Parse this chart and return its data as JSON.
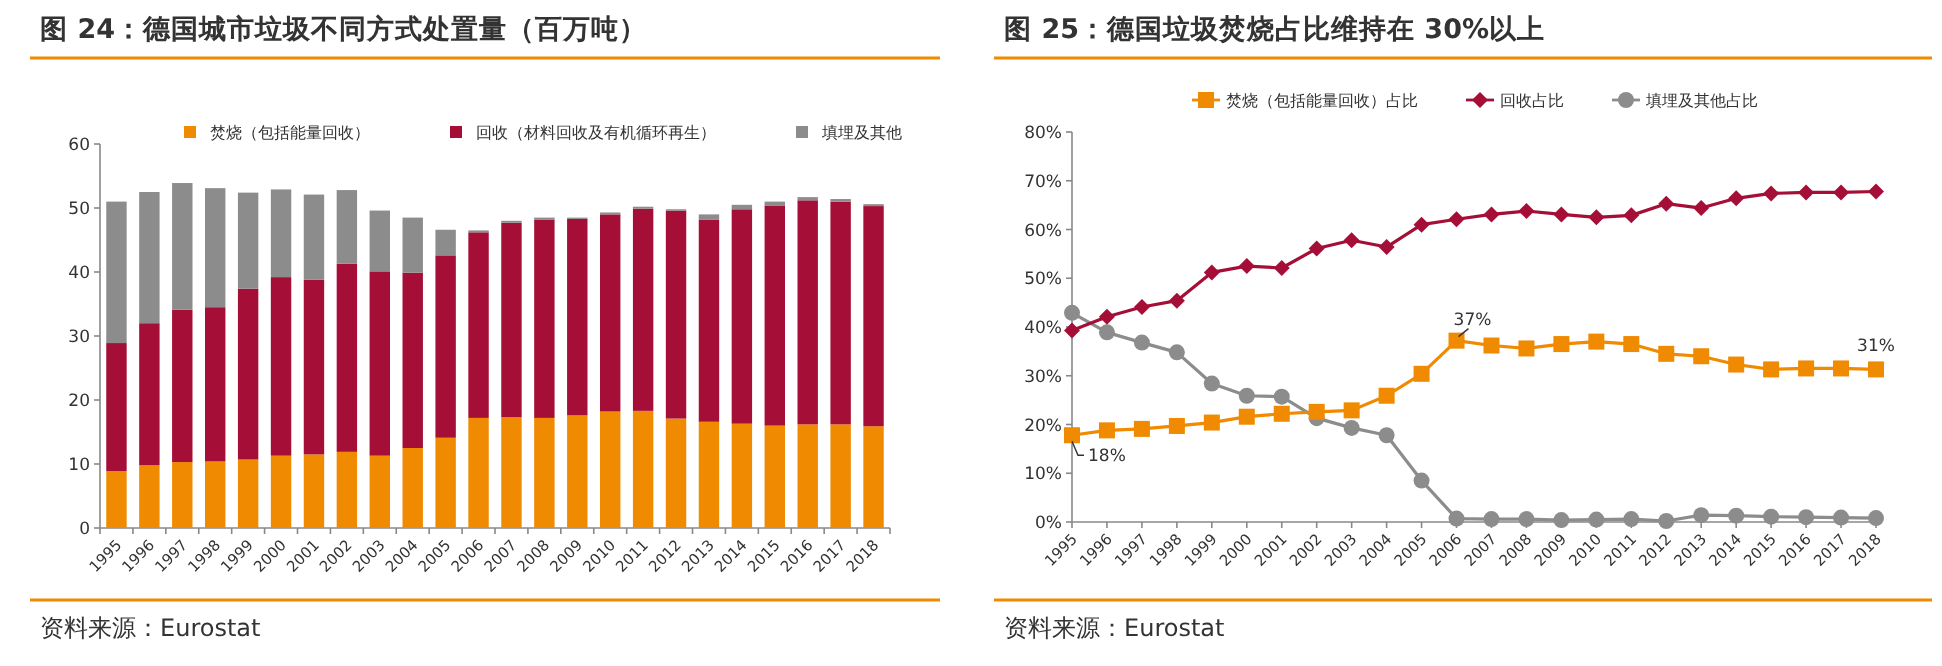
{
  "chart_data": [
    {
      "type": "bar",
      "stacked": true,
      "title": "图 24：德国城市垃圾不同方式处置量（百万吨）",
      "legend": "top",
      "grid": false,
      "categories": [
        "1995",
        "1996",
        "1997",
        "1998",
        "1999",
        "2000",
        "2001",
        "2002",
        "2003",
        "2004",
        "2005",
        "2006",
        "2007",
        "2008",
        "2009",
        "2010",
        "2011",
        "2012",
        "2013",
        "2014",
        "2015",
        "2016",
        "2017",
        "2018"
      ],
      "series": [
        {
          "name": "焚烧（包括能量回收）",
          "color": "#f08a00",
          "values": [
            8.9,
            9.8,
            10.3,
            10.4,
            10.7,
            11.3,
            11.5,
            11.9,
            11.3,
            12.5,
            14.1,
            17.2,
            17.3,
            17.2,
            17.6,
            18.2,
            18.3,
            17.1,
            16.6,
            16.3,
            16.0,
            16.2,
            16.2,
            15.9
          ]
        },
        {
          "name": "回收（材料回收及有机循环再生）",
          "color": "#a50f37",
          "values": [
            20.0,
            22.2,
            23.8,
            24.1,
            26.7,
            27.9,
            27.3,
            29.4,
            28.8,
            27.4,
            28.5,
            29.0,
            30.4,
            31.0,
            30.7,
            30.8,
            31.6,
            32.5,
            31.6,
            33.5,
            34.4,
            35.0,
            34.8,
            34.4
          ]
        },
        {
          "name": "填埋及其他",
          "color": "#8c8c8c",
          "values": [
            22.1,
            20.5,
            19.8,
            18.6,
            15.0,
            13.7,
            13.3,
            11.5,
            9.5,
            8.6,
            4.0,
            0.3,
            0.3,
            0.3,
            0.2,
            0.3,
            0.3,
            0.2,
            0.8,
            0.7,
            0.6,
            0.5,
            0.4,
            0.3
          ]
        }
      ],
      "ylim": [
        0,
        60
      ],
      "yticks": [
        0,
        10,
        20,
        30,
        40,
        50,
        60
      ],
      "annotations": [
        "资料来源：Eurostat"
      ]
    },
    {
      "type": "line",
      "title": "图 25：德国垃圾焚烧占比维持在 30%以上",
      "legend": "top",
      "grid": false,
      "categories": [
        "1995",
        "1996",
        "1997",
        "1998",
        "1999",
        "2000",
        "2001",
        "2002",
        "2003",
        "2004",
        "2005",
        "2006",
        "2007",
        "2008",
        "2009",
        "2010",
        "2011",
        "2012",
        "2013",
        "2014",
        "2015",
        "2016",
        "2017",
        "2018"
      ],
      "series": [
        {
          "name": "焚烧（包括能量回收）占比",
          "color": "#f08a00",
          "marker": "square",
          "values": [
            17.8,
            18.8,
            19.1,
            19.7,
            20.4,
            21.6,
            22.2,
            22.6,
            22.9,
            25.9,
            30.4,
            37.2,
            36.2,
            35.6,
            36.5,
            37.0,
            36.5,
            34.5,
            34.0,
            32.3,
            31.3,
            31.5,
            31.5,
            31.3
          ]
        },
        {
          "name": "回收占比",
          "color": "#a50f37",
          "marker": "diamond",
          "values": [
            39.3,
            42.1,
            44.1,
            45.4,
            51.2,
            52.5,
            52.1,
            56.1,
            57.8,
            56.4,
            61.0,
            62.1,
            63.1,
            63.8,
            63.1,
            62.5,
            62.9,
            65.3,
            64.4,
            66.4,
            67.4,
            67.6,
            67.6,
            67.8
          ]
        },
        {
          "name": "填埋及其他占比",
          "color": "#8c8c8c",
          "marker": "circle",
          "values": [
            42.9,
            38.9,
            36.8,
            34.8,
            28.4,
            25.9,
            25.7,
            21.3,
            19.3,
            17.8,
            8.5,
            0.7,
            0.6,
            0.6,
            0.4,
            0.5,
            0.6,
            0.2,
            1.4,
            1.3,
            1.1,
            1.0,
            0.9,
            0.8
          ]
        }
      ],
      "ylim": [
        0,
        80
      ],
      "yticks": [
        {
          "value": 0,
          "label": "0%"
        },
        {
          "value": 10,
          "label": "10%"
        },
        {
          "value": 20,
          "label": "20%"
        },
        {
          "value": 30,
          "label": "30%"
        },
        {
          "value": 40,
          "label": "40%"
        },
        {
          "value": 50,
          "label": "50%"
        },
        {
          "value": 60,
          "label": "60%"
        },
        {
          "value": 70,
          "label": "70%"
        },
        {
          "value": 80,
          "label": "80%"
        }
      ],
      "annotations": [
        {
          "text": "18%",
          "x": "1995",
          "y": 17.8
        },
        {
          "text": "37%",
          "x": "2006",
          "y": 37.2
        },
        {
          "text": "31%",
          "x": "2018",
          "y": 31.3
        },
        "资料来源：Eurostat"
      ]
    }
  ]
}
